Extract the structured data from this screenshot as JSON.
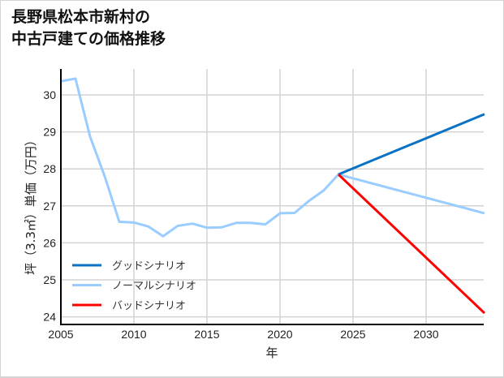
{
  "title": {
    "line1": "長野県松本市新村の",
    "line2": "中古戸建ての価格推移"
  },
  "colors": {
    "good": "#0a72c4",
    "normal": "#99ccff",
    "bad": "#ff0000",
    "grid": "#d3d3d3",
    "axis": "#000000"
  },
  "chart_data": {
    "type": "line",
    "title": "長野県松本市新村の中古戸建ての価格推移",
    "xlabel": "年",
    "ylabel": "坪（3.3㎡）単価（万円）",
    "xlim": [
      2005,
      2034
    ],
    "ylim": [
      23.8,
      30.7
    ],
    "xticks": [
      2005,
      2010,
      2015,
      2020,
      2025,
      2030
    ],
    "yticks": [
      24,
      25,
      26,
      27,
      28,
      29,
      30
    ],
    "grid": true,
    "legend_position": "lower left",
    "series": [
      {
        "name": "グッドシナリオ",
        "color": "#0a72c4",
        "x": [
          2024,
          2034
        ],
        "values": [
          27.85,
          29.48
        ]
      },
      {
        "name": "ノーマルシナリオ",
        "color": "#99ccff",
        "x": [
          2005,
          2006,
          2007,
          2008,
          2009,
          2010,
          2011,
          2012,
          2013,
          2014,
          2015,
          2016,
          2017,
          2018,
          2019,
          2020,
          2021,
          2022,
          2023,
          2024,
          2034
        ],
        "values": [
          30.37,
          30.44,
          28.87,
          27.8,
          26.57,
          26.55,
          26.44,
          26.18,
          26.46,
          26.52,
          26.41,
          26.42,
          26.54,
          26.54,
          26.5,
          26.8,
          26.81,
          27.14,
          27.42,
          27.85,
          26.8
        ]
      },
      {
        "name": "バッドシナリオ",
        "color": "#ff0000",
        "x": [
          2024,
          2034
        ],
        "values": [
          27.85,
          24.1
        ]
      }
    ]
  }
}
